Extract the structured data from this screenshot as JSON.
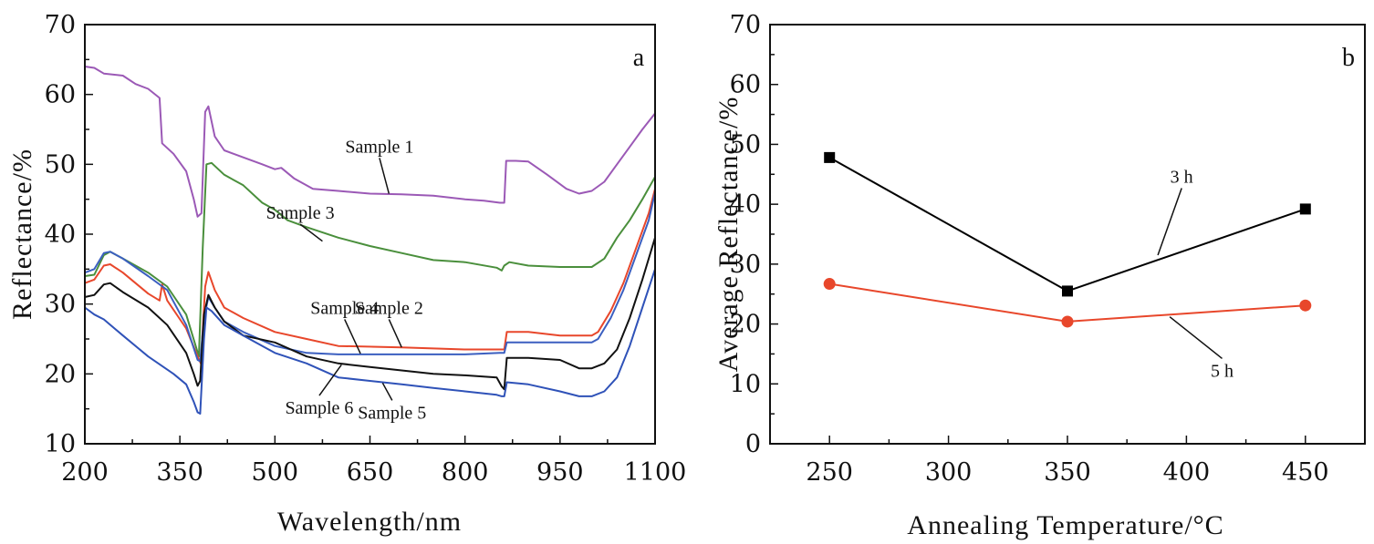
{
  "chart_data": [
    {
      "type": "line",
      "panel_label": "a",
      "xlabel": "Wavelength/nm",
      "ylabel": "Reflectance/%",
      "xlim": [
        200,
        1100
      ],
      "ylim": [
        10,
        70
      ],
      "xticks": [
        200,
        350,
        500,
        650,
        800,
        950,
        1100
      ],
      "yticks": [
        10,
        20,
        30,
        40,
        50,
        60,
        70
      ],
      "grid": false,
      "legend": "none",
      "series": [
        {
          "name": "Sample 1",
          "color": "#9b59b6",
          "x": [
            200,
            215,
            230,
            260,
            280,
            300,
            318,
            322,
            340,
            360,
            372,
            378,
            384,
            390,
            395,
            405,
            420,
            450,
            480,
            500,
            510,
            530,
            560,
            600,
            650,
            700,
            750,
            800,
            830,
            855,
            862,
            865,
            880,
            900,
            930,
            960,
            980,
            1000,
            1020,
            1040,
            1060,
            1080,
            1100
          ],
          "y": [
            64,
            63.8,
            63,
            62.7,
            61.5,
            60.8,
            59.5,
            53,
            51.5,
            49,
            45,
            42.5,
            43,
            57.5,
            58.3,
            54,
            52,
            51,
            50,
            49.3,
            49.5,
            48,
            46.5,
            46.2,
            45.8,
            45.7,
            45.5,
            45,
            44.8,
            44.5,
            44.5,
            50.5,
            50.5,
            50.4,
            48.5,
            46.5,
            45.8,
            46.2,
            47.5,
            50,
            52.5,
            55,
            57.3
          ]
        },
        {
          "name": "Sample 3",
          "color": "#4a8f3c",
          "x": [
            200,
            215,
            230,
            240,
            260,
            300,
            330,
            360,
            375,
            380,
            386,
            392,
            400,
            420,
            450,
            480,
            500,
            520,
            550,
            600,
            650,
            700,
            750,
            800,
            850,
            858,
            862,
            870,
            900,
            950,
            1000,
            1020,
            1040,
            1060,
            1080,
            1100
          ],
          "y": [
            34,
            34.2,
            37,
            37.5,
            36.5,
            34.5,
            32.5,
            28.5,
            24,
            22.5,
            38,
            50,
            50.2,
            48.5,
            47,
            44.5,
            43.5,
            42,
            41,
            39.5,
            38.3,
            37.3,
            36.3,
            36,
            35.2,
            34.8,
            35.5,
            36,
            35.5,
            35.3,
            35.3,
            36.5,
            39.5,
            42,
            45,
            48.2
          ]
        },
        {
          "name": "Sample 2",
          "color": "#e8472b",
          "x": [
            200,
            215,
            230,
            240,
            260,
            300,
            318,
            322,
            330,
            360,
            378,
            383,
            390,
            395,
            405,
            420,
            450,
            500,
            550,
            600,
            700,
            800,
            855,
            862,
            866,
            900,
            950,
            1000,
            1010,
            1030,
            1050,
            1070,
            1090,
            1100
          ],
          "y": [
            33,
            33.5,
            35.5,
            35.7,
            34.5,
            31.5,
            30.5,
            32.8,
            30.5,
            26.5,
            22.5,
            21.5,
            32.5,
            34.6,
            32,
            29.5,
            28,
            26,
            25,
            24,
            23.8,
            23.5,
            23.5,
            23.5,
            26,
            26,
            25.5,
            25.5,
            26,
            29,
            33,
            38,
            43,
            46.5
          ]
        },
        {
          "name": "Sample 4",
          "color": "#3b5fc0",
          "x": [
            200,
            215,
            230,
            240,
            260,
            300,
            330,
            360,
            378,
            382,
            388,
            395,
            405,
            420,
            450,
            500,
            550,
            600,
            700,
            800,
            855,
            862,
            866,
            900,
            950,
            1000,
            1010,
            1030,
            1050,
            1070,
            1090,
            1100
          ],
          "y": [
            34.5,
            35,
            37.3,
            37.5,
            36.5,
            34,
            32,
            27,
            22,
            21.8,
            28,
            31,
            29.5,
            27.5,
            26,
            24,
            23,
            22.8,
            22.8,
            22.8,
            23,
            23,
            24.5,
            24.5,
            24.5,
            24.5,
            25,
            28,
            32,
            37,
            42,
            46
          ]
        },
        {
          "name": "Sample 6",
          "color": "#111111",
          "x": [
            200,
            215,
            230,
            240,
            260,
            300,
            330,
            360,
            372,
            378,
            382,
            388,
            395,
            405,
            420,
            450,
            500,
            550,
            600,
            650,
            700,
            750,
            800,
            850,
            858,
            862,
            866,
            900,
            950,
            980,
            1000,
            1020,
            1040,
            1060,
            1080,
            1100
          ],
          "y": [
            31,
            31.3,
            32.8,
            33,
            31.7,
            29.5,
            27,
            23,
            20,
            18.3,
            19,
            28.5,
            31.3,
            29.5,
            27.5,
            25.5,
            24.5,
            22.5,
            21.5,
            21,
            20.5,
            20,
            19.8,
            19.5,
            18.2,
            17.8,
            22.3,
            22.3,
            22,
            20.8,
            20.8,
            21.5,
            23.5,
            28,
            33.5,
            39.5
          ]
        },
        {
          "name": "Sample 5",
          "color": "#2f52b8",
          "x": [
            200,
            215,
            230,
            260,
            300,
            340,
            360,
            372,
            378,
            382,
            388,
            392,
            400,
            420,
            450,
            500,
            550,
            600,
            650,
            700,
            750,
            800,
            850,
            858,
            862,
            866,
            900,
            950,
            980,
            1000,
            1020,
            1040,
            1060,
            1080,
            1100
          ],
          "y": [
            29.5,
            28.5,
            27.8,
            25.5,
            22.5,
            20,
            18.5,
            16,
            14.5,
            14.3,
            25,
            29.5,
            29,
            27,
            25.5,
            23,
            21.5,
            19.5,
            19,
            18.5,
            18,
            17.5,
            17,
            16.8,
            16.8,
            18.8,
            18.5,
            17.5,
            16.8,
            16.8,
            17.5,
            19.5,
            24,
            29.5,
            35
          ]
        }
      ],
      "annotations": [
        {
          "text": "Sample 1",
          "x": 665,
          "y": 51.7,
          "to_x": 680,
          "to_y": 45.8
        },
        {
          "text": "Sample 3",
          "x": 540,
          "y": 42.2,
          "to_x": 575,
          "to_y": 39
        },
        {
          "text": "Sample 4",
          "x": 610,
          "y": 28.6,
          "to_x": 635,
          "to_y": 22.9
        },
        {
          "text": "Sample 2",
          "x": 680,
          "y": 28.6,
          "to_x": 700,
          "to_y": 23.8
        },
        {
          "text": "Sample 6",
          "x": 570,
          "y": 14.3,
          "to_x": 605,
          "to_y": 21.3
        },
        {
          "text": "Sample 5",
          "x": 685,
          "y": 13.6,
          "to_x": 670,
          "to_y": 18.7
        }
      ]
    },
    {
      "type": "line",
      "panel_label": "b",
      "xlabel": "Annealing Temperature/°C",
      "ylabel": "Average Reflectance/%",
      "xlim": [
        225,
        475
      ],
      "ylim": [
        0,
        70
      ],
      "xticks": [
        250,
        300,
        350,
        400,
        450
      ],
      "yticks": [
        0,
        10,
        20,
        30,
        40,
        50,
        60,
        70
      ],
      "grid": false,
      "legend": "none",
      "series": [
        {
          "name": "3 h",
          "color": "#000000",
          "marker": "square",
          "x": [
            250,
            350,
            450
          ],
          "y": [
            47.8,
            25.5,
            39.2
          ]
        },
        {
          "name": "5 h",
          "color": "#e8472b",
          "marker": "circle",
          "x": [
            250,
            350,
            450
          ],
          "y": [
            26.7,
            20.4,
            23.1
          ]
        }
      ],
      "annotations": [
        {
          "text": "3 h",
          "x": 398,
          "y": 43.6,
          "to_x": 388,
          "to_y": 31.5
        },
        {
          "text": "5 h",
          "x": 415,
          "y": 11.2,
          "to_x": 393,
          "to_y": 21.2
        }
      ]
    }
  ]
}
